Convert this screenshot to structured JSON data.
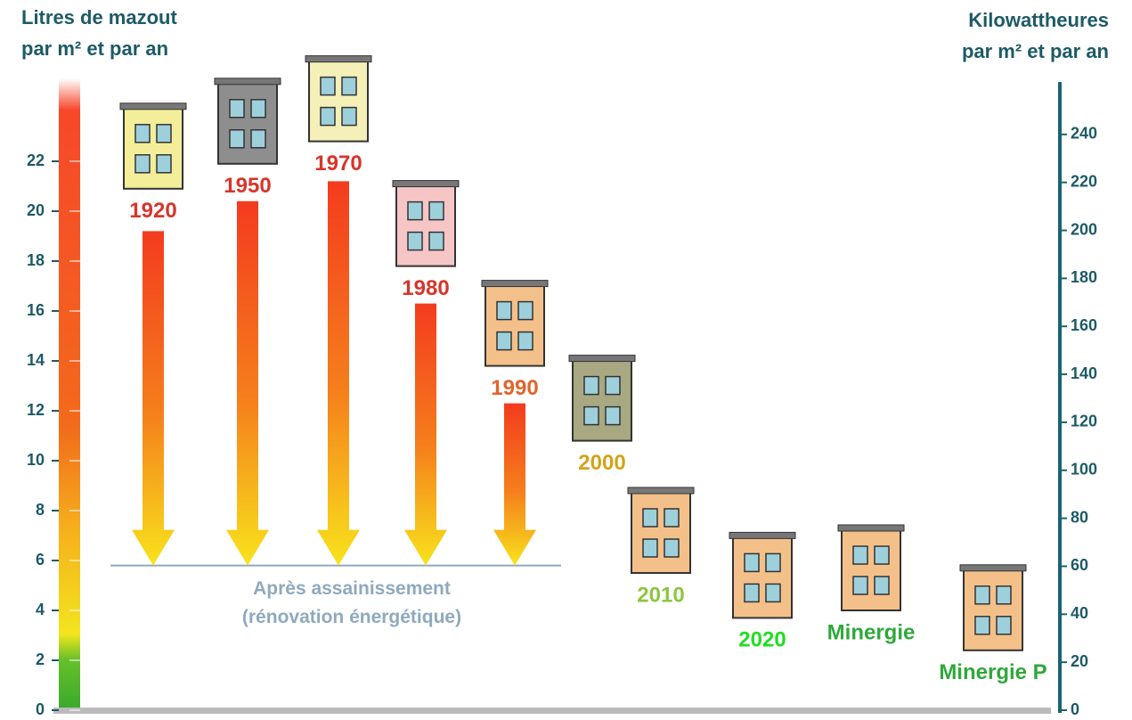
{
  "chart_data": {
    "type": "building-levels",
    "y_label": [
      "Litres de mazout",
      "par m² et par an"
    ],
    "y2_label": [
      "Kilowattheures",
      "par m² et par an"
    ],
    "categories": [
      "1920",
      "1950",
      "1970",
      "1980",
      "1990",
      "2000",
      "2010",
      "2020",
      "Minergie",
      "Minergie P"
    ],
    "values": [
      20.9,
      21.9,
      22.8,
      17.8,
      13.8,
      10.8,
      5.5,
      3.7,
      4.0,
      2.4
    ],
    "label_colors": [
      "#d8352a",
      "#d8352a",
      "#d8352a",
      "#d8352a",
      "#e0652c",
      "#d4a31a",
      "#8cc63f",
      "#22dd22",
      "#2fa83a",
      "#2fa83a"
    ],
    "building_colors": [
      "#f4ee9a",
      "#8e8e8e",
      "#f4f0b8",
      "#f6c6c6",
      "#f4c08a",
      "#a8a882",
      "#f4c08a",
      "#f4c08a",
      "#f4c08a",
      "#f4c08a"
    ],
    "arrows": [
      19.2,
      20.4,
      21.2,
      16.3,
      12.3,
      null,
      null,
      null,
      null,
      null
    ],
    "renovation": {
      "value": 5.8,
      "label": [
        "Après assainissement",
        "(rénovation énergétique)"
      ]
    },
    "ylim": [
      0,
      25
    ],
    "yticks": [
      0,
      2,
      4,
      6,
      8,
      10,
      12,
      14,
      16,
      18,
      20,
      22
    ],
    "y2lim": [
      0,
      260
    ],
    "y2ticks": [
      0,
      20,
      40,
      60,
      80,
      100,
      120,
      140,
      160,
      180,
      200,
      220,
      240
    ]
  }
}
